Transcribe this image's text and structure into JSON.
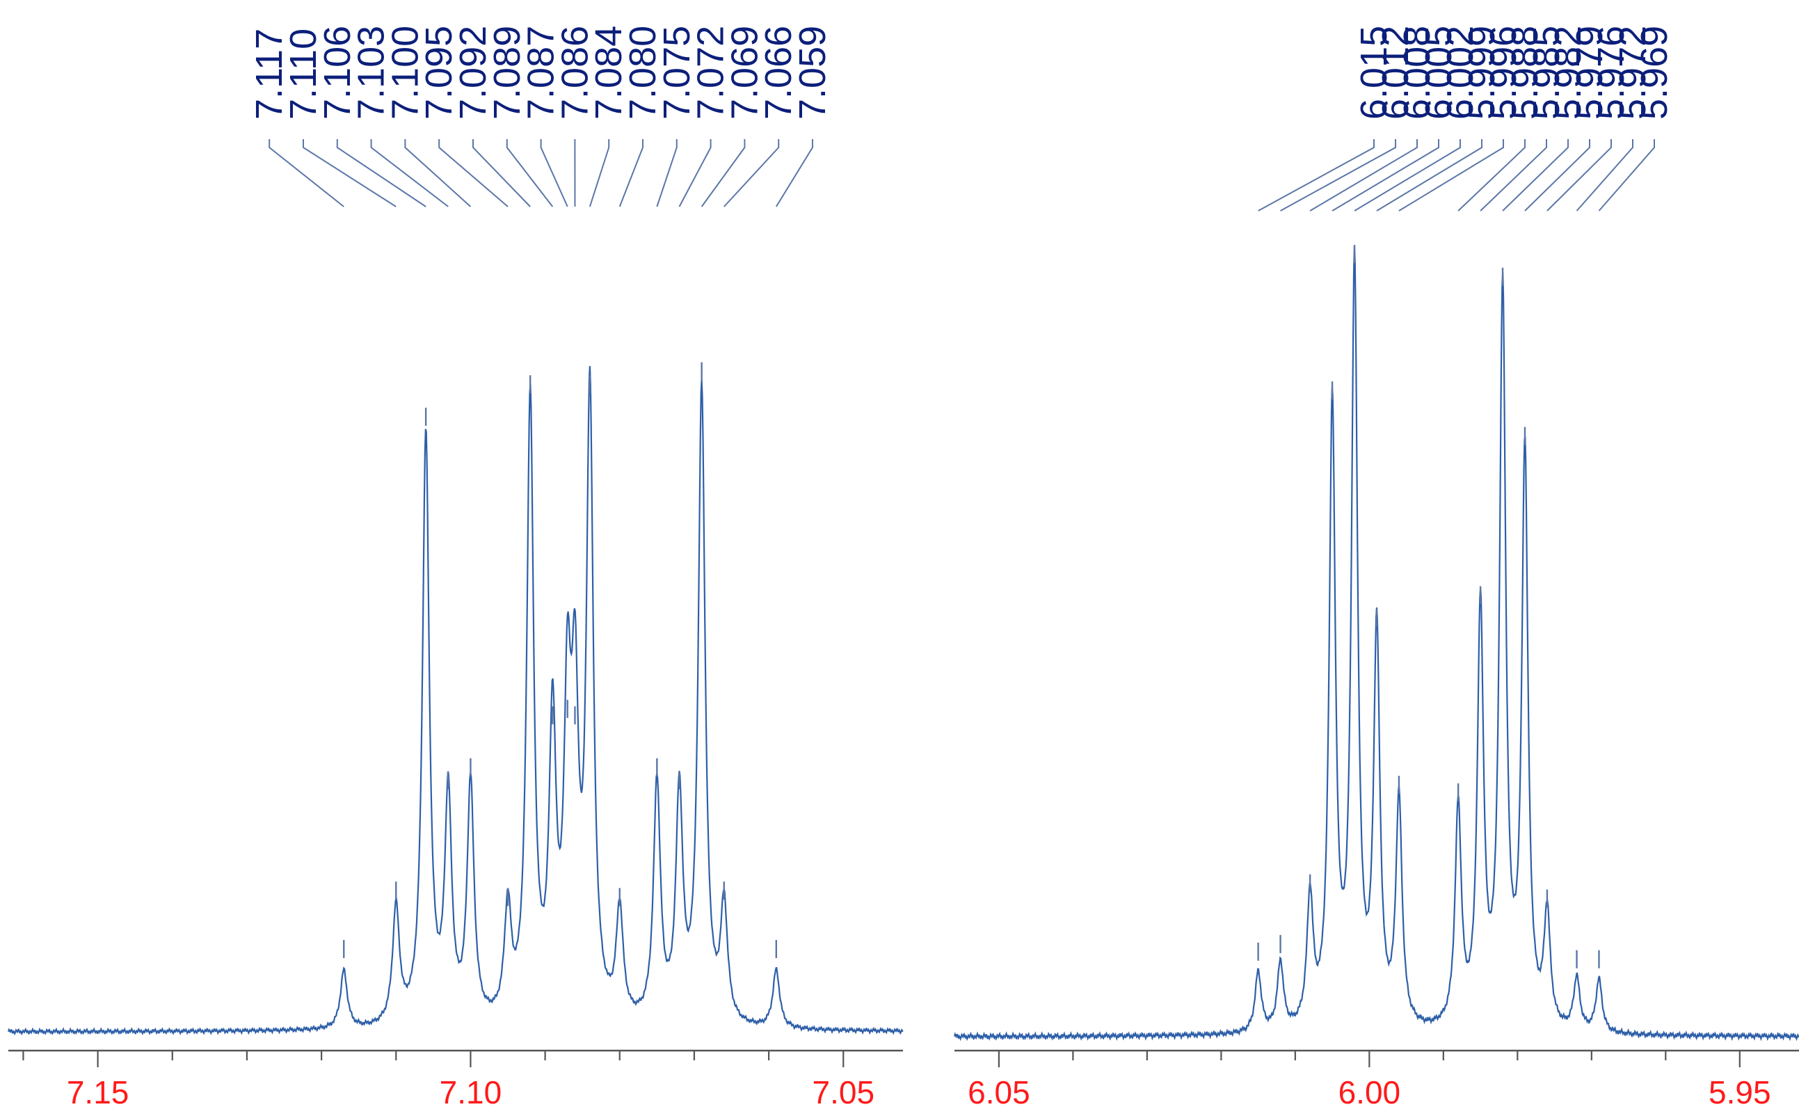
{
  "chart_data": [
    {
      "type": "line",
      "title": "",
      "xlabel": "",
      "ylabel": "",
      "x_reversed": true,
      "xlim": [
        7.162,
        7.042
      ],
      "major_ticks": [
        7.15,
        7.1,
        7.05
      ],
      "tick_labels": [
        "7.15",
        "7.10",
        "7.05"
      ],
      "minor_tick_step": 0.01,
      "peak_labels": [
        "7.117",
        "7.110",
        "7.106",
        "7.103",
        "7.100",
        "7.095",
        "7.092",
        "7.089",
        "7.087",
        "7.086",
        "7.084",
        "7.080",
        "7.075",
        "7.072",
        "7.069",
        "7.066",
        "7.059"
      ],
      "peaks": [
        {
          "x": 7.117,
          "height": 0.09
        },
        {
          "x": 7.11,
          "height": 0.18
        },
        {
          "x": 7.106,
          "height": 0.91
        },
        {
          "x": 7.103,
          "height": 0.35
        },
        {
          "x": 7.1,
          "height": 0.37
        },
        {
          "x": 7.095,
          "height": 0.17
        },
        {
          "x": 7.092,
          "height": 0.96
        },
        {
          "x": 7.089,
          "height": 0.45
        },
        {
          "x": 7.087,
          "height": 0.46
        },
        {
          "x": 7.086,
          "height": 0.45
        },
        {
          "x": 7.084,
          "height": 0.96
        },
        {
          "x": 7.08,
          "height": 0.17
        },
        {
          "x": 7.075,
          "height": 0.37
        },
        {
          "x": 7.072,
          "height": 0.35
        },
        {
          "x": 7.069,
          "height": 0.98
        },
        {
          "x": 7.066,
          "height": 0.18
        },
        {
          "x": 7.059,
          "height": 0.09
        }
      ]
    },
    {
      "type": "line",
      "title": "",
      "xlabel": "",
      "ylabel": "",
      "x_reversed": true,
      "xlim": [
        6.056,
        5.942
      ],
      "major_ticks": [
        6.05,
        6.0,
        5.95
      ],
      "tick_labels": [
        "6.05",
        "6.00",
        "5.95"
      ],
      "minor_tick_step": 0.01,
      "peak_labels": [
        "6.015",
        "6.012",
        "6.008",
        "6.005",
        "6.002",
        "5.999",
        "5.996",
        "5.988",
        "5.985",
        "5.982",
        "5.979",
        "5.976",
        "5.972",
        "5.969"
      ],
      "peaks": [
        {
          "x": 6.015,
          "height": 0.08
        },
        {
          "x": 6.012,
          "height": 0.09
        },
        {
          "x": 6.008,
          "height": 0.17
        },
        {
          "x": 6.005,
          "height": 0.82
        },
        {
          "x": 6.002,
          "height": 1.0
        },
        {
          "x": 5.999,
          "height": 0.52
        },
        {
          "x": 5.996,
          "height": 0.3
        },
        {
          "x": 5.988,
          "height": 0.29
        },
        {
          "x": 5.985,
          "height": 0.55
        },
        {
          "x": 5.982,
          "height": 0.97
        },
        {
          "x": 5.979,
          "height": 0.76
        },
        {
          "x": 5.976,
          "height": 0.15
        },
        {
          "x": 5.972,
          "height": 0.07
        },
        {
          "x": 5.969,
          "height": 0.07
        }
      ]
    }
  ]
}
